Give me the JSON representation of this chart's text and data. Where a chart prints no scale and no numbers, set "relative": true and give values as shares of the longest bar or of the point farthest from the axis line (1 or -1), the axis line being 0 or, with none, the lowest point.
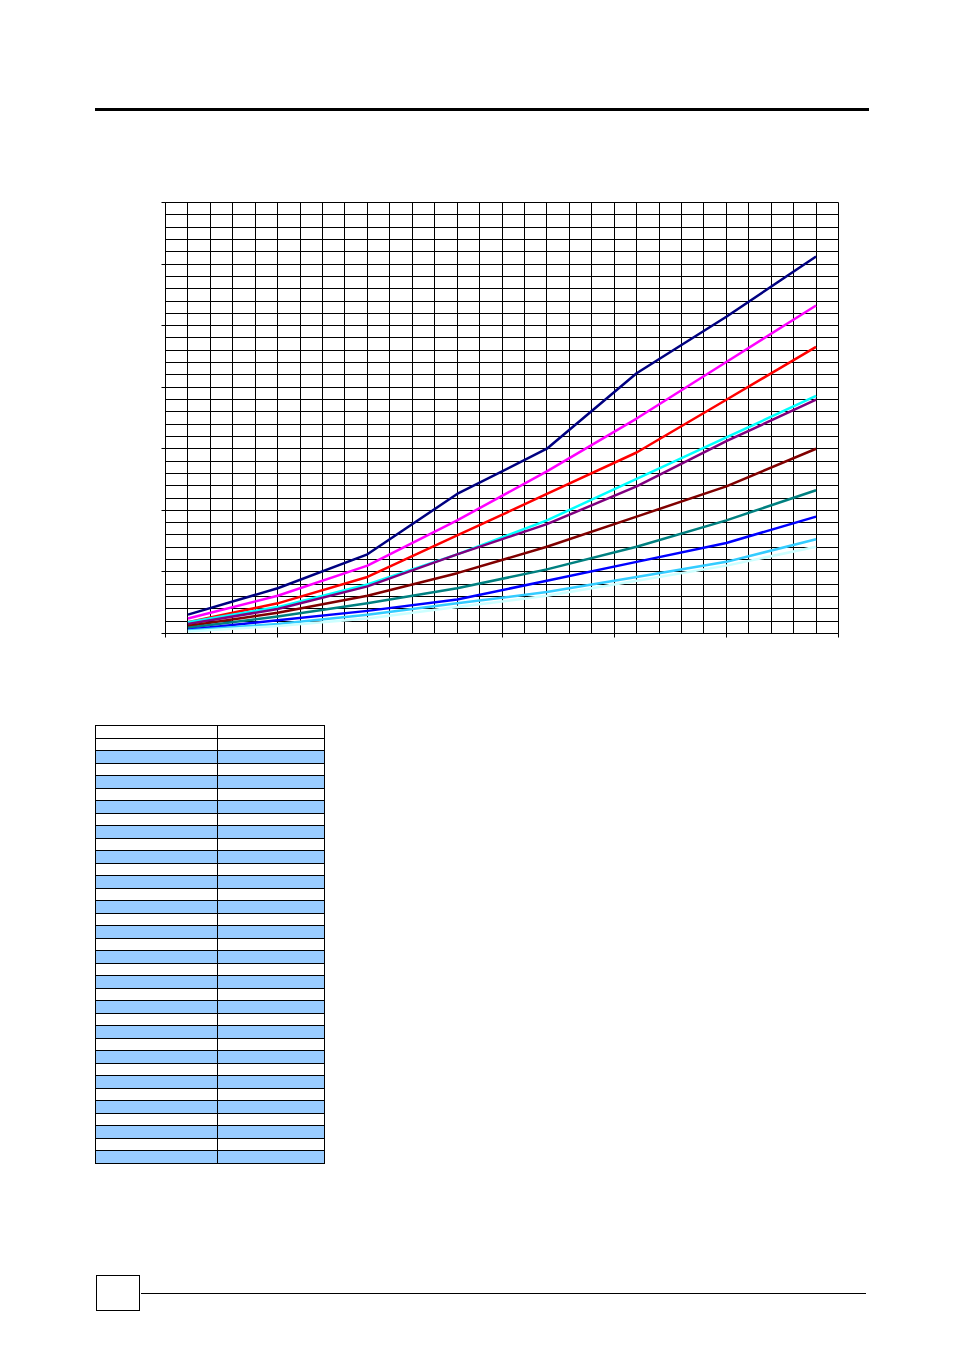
{
  "chart_data": {
    "type": "line",
    "relative": true,
    "grid": true,
    "line_style": "solid",
    "marker": "none",
    "categories": [
      null,
      null,
      null,
      null,
      null,
      null,
      null,
      null
    ],
    "series": [
      {
        "color": "#000080",
        "values": [
          0.05,
          0.12,
          0.21,
          0.37,
          0.49,
          0.69,
          0.84,
          1
        ]
      },
      {
        "color": "#ff00ff",
        "values": [
          0.04,
          0.1,
          0.18,
          0.3,
          0.43,
          0.57,
          0.72,
          0.87
        ]
      },
      {
        "color": "#ff0000",
        "values": [
          0.03,
          0.08,
          0.15,
          0.26,
          0.37,
          0.48,
          0.62,
          0.76
        ]
      },
      {
        "color": "#00ffff",
        "values": [
          0.03,
          0.07,
          0.13,
          0.21,
          0.3,
          0.41,
          0.52,
          0.63
        ]
      },
      {
        "color": "#800080",
        "values": [
          0.025,
          0.065,
          0.125,
          0.21,
          0.29,
          0.39,
          0.51,
          0.62
        ]
      },
      {
        "color": "#800000",
        "values": [
          0.02,
          0.055,
          0.1,
          0.16,
          0.23,
          0.31,
          0.39,
          0.49
        ]
      },
      {
        "color": "#008080",
        "values": [
          0.015,
          0.045,
          0.08,
          0.12,
          0.17,
          0.23,
          0.3,
          0.38
        ]
      },
      {
        "color": "#0000ff",
        "values": [
          0.01,
          0.035,
          0.06,
          0.09,
          0.14,
          0.19,
          0.24,
          0.31
        ]
      },
      {
        "color": "#33ccff",
        "values": [
          0.008,
          0.025,
          0.05,
          0.08,
          0.11,
          0.15,
          0.19,
          0.25
        ]
      },
      {
        "color": "#ccffff",
        "values": [
          0.005,
          0.02,
          0.04,
          0.07,
          0.1,
          0.14,
          0.18,
          0.23
        ]
      }
    ]
  }
}
